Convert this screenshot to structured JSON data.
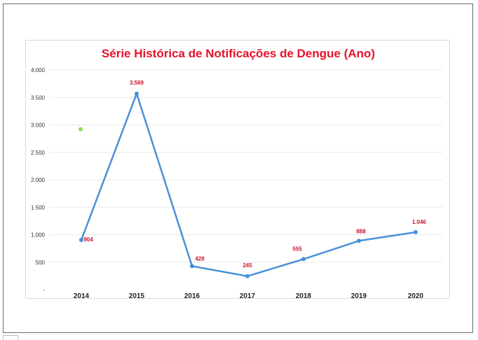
{
  "colors": {
    "title": "#e8102a",
    "series_line": "#4a90d9",
    "data_label": "#d0102a",
    "stray_dot": "#8ee04a"
  },
  "chart_data": {
    "type": "line",
    "title": "Série Histórica de Notificações de Dengue (Ano)",
    "xlabel": "",
    "ylabel": "",
    "categories": [
      "2014",
      "2015",
      "2016",
      "2017",
      "2018",
      "2019",
      "2020"
    ],
    "series": [
      {
        "values": [
          904,
          3569,
          428,
          245,
          555,
          888,
          1046
        ],
        "data_labels": [
          "904",
          "3.569",
          "428",
          "245",
          "555",
          "888",
          "1.046"
        ]
      }
    ],
    "ylim": [
      0,
      4000
    ],
    "yticks": [
      0,
      500,
      1000,
      1500,
      2000,
      2500,
      3000,
      3500,
      4000
    ],
    "ytick_labels": [
      "-",
      "500",
      "1.000",
      "1.500",
      "2.000",
      "2.500",
      "3.000",
      "3.500",
      "4.000"
    ],
    "grid": true,
    "legend": "none",
    "stray_marker": {
      "x": "2014",
      "y": 2920
    }
  }
}
